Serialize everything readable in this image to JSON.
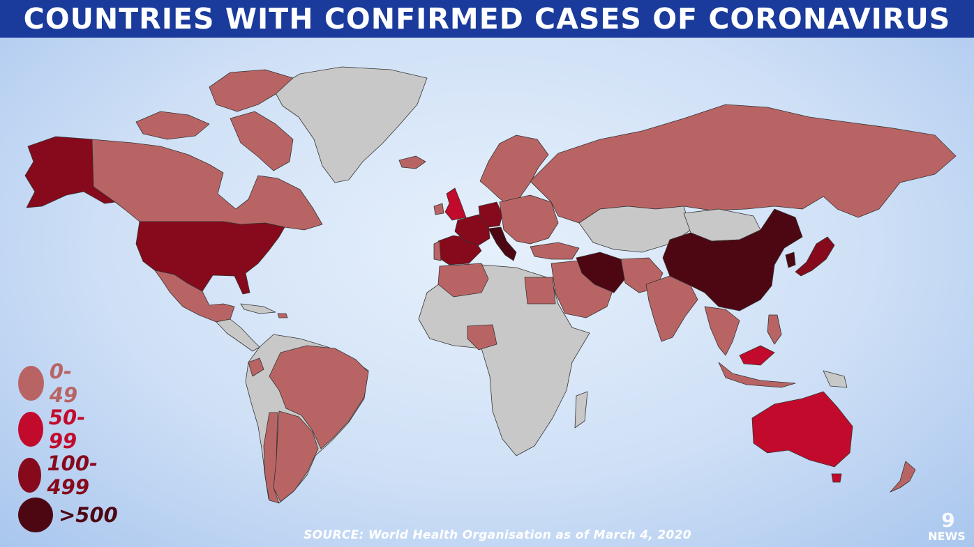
{
  "title": "COUNTRIES WITH CONFIRMED CASES OF CORONAVIRUS",
  "colors": {
    "title_bar": "#1a3b9c",
    "no_cases": "#c8c8c8",
    "ocean": "#d3e3f7"
  },
  "legend": [
    {
      "label": "0-49",
      "color": "#b96464"
    },
    {
      "label": "50-99",
      "color": "#c20b2c"
    },
    {
      "label": "100-499",
      "color": "#860a1c"
    },
    {
      "label": ">500",
      "color": "#4d0713"
    }
  ],
  "source": "SOURCE: World Health Organisation as of March 4, 2020",
  "logo": {
    "mark": "9",
    "text": "NEWS"
  }
}
